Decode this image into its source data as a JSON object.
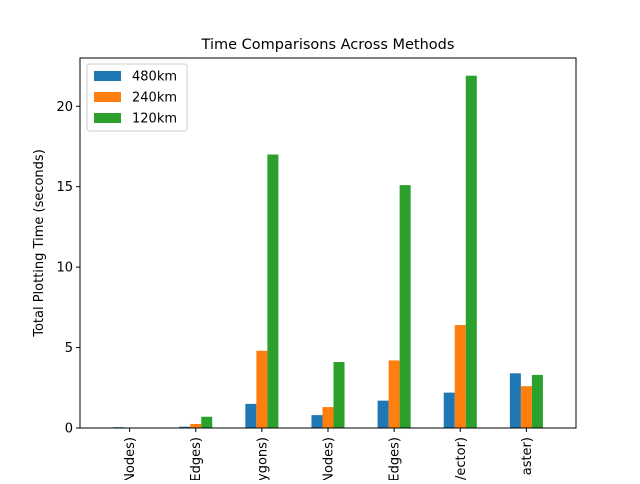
{
  "chart_data": {
    "type": "bar",
    "title": "Time Comparisons Across Methods",
    "xlabel": "",
    "ylabel": "Total Plotting Time (seconds)",
    "categories": [
      "Nodes)",
      "Edges)",
      "ygons)",
      "Nodes)",
      "Edges)",
      "/ector)",
      "aster)"
    ],
    "series": [
      {
        "name": "480km",
        "color": "#1f77b4",
        "values": [
          0.05,
          0.08,
          1.5,
          0.8,
          1.7,
          2.2,
          3.4
        ]
      },
      {
        "name": "240km",
        "color": "#ff7f0e",
        "values": [
          0.02,
          0.25,
          4.8,
          1.3,
          4.2,
          6.4,
          2.6
        ]
      },
      {
        "name": "120km",
        "color": "#2ca02c",
        "values": [
          0.0,
          0.7,
          17.0,
          4.1,
          15.1,
          21.9,
          3.3
        ]
      }
    ],
    "ylim": [
      0,
      23
    ],
    "yticks": [
      0,
      5,
      10,
      15,
      20
    ],
    "legend_position": "upper-left",
    "grid": false
  }
}
